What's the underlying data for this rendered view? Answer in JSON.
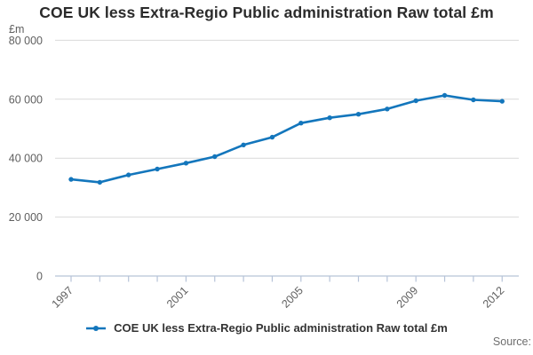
{
  "title": "COE UK less Extra-Regio Public administration Raw total £m",
  "y_axis": {
    "unit_label": "£m",
    "tick_values": [
      0,
      20000,
      40000,
      60000,
      80000
    ],
    "tick_labels": [
      "0",
      "20 000",
      "40 000",
      "60 000",
      "80 000"
    ]
  },
  "x_axis": {
    "tick_years": [
      1997,
      1998,
      1999,
      2000,
      2001,
      2002,
      2003,
      2004,
      2005,
      2006,
      2007,
      2008,
      2009,
      2010,
      2011,
      2012
    ],
    "labeled_years": [
      1997,
      2001,
      2005,
      2009,
      2012
    ]
  },
  "legend": {
    "label": "COE UK less Extra-Regio Public administration Raw total £m",
    "marker": "line-with-dot"
  },
  "source_label": "Source:",
  "colors": {
    "line": "#1376bc",
    "grid": "#d9d9d9",
    "axis": "#b6c3d8",
    "title_text": "#2b2b2b",
    "tick_text": "#5f5f5f",
    "legend_text": "#333333",
    "source_text": "#6e6e6e"
  },
  "chart_data": {
    "type": "line",
    "title": "COE UK less Extra-Regio Public administration Raw total £m",
    "xlabel": "",
    "ylabel": "£m",
    "x": [
      1997,
      1998,
      1999,
      2000,
      2001,
      2002,
      2003,
      2004,
      2005,
      2006,
      2007,
      2008,
      2009,
      2010,
      2011,
      2012
    ],
    "series": [
      {
        "name": "COE UK less Extra-Regio Public administration Raw total £m",
        "values": [
          32800,
          31800,
          34300,
          36300,
          38300,
          40500,
          44500,
          47100,
          51900,
          53700,
          54900,
          56700,
          59500,
          61300,
          59800,
          59300
        ]
      }
    ],
    "ylim": [
      0,
      80000
    ],
    "yticks": [
      0,
      20000,
      40000,
      60000,
      80000
    ],
    "xticks_labeled": [
      1997,
      2001,
      2005,
      2009,
      2012
    ],
    "grid": "horizontal",
    "legend_position": "bottom",
    "marker": "circle"
  }
}
